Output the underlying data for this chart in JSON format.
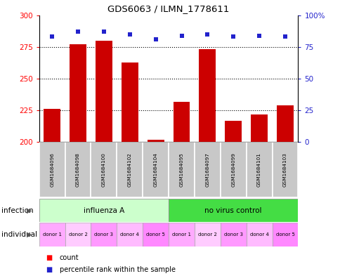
{
  "title": "GDS6063 / ILMN_1778611",
  "samples": [
    "GSM1684096",
    "GSM1684098",
    "GSM1684100",
    "GSM1684102",
    "GSM1684104",
    "GSM1684095",
    "GSM1684097",
    "GSM1684099",
    "GSM1684101",
    "GSM1684103"
  ],
  "counts": [
    226,
    277,
    280,
    263,
    202,
    232,
    273,
    217,
    222,
    229
  ],
  "percentile_ranks": [
    83,
    87,
    87,
    85,
    81,
    84,
    85,
    83,
    84,
    83
  ],
  "ylim_left": [
    200,
    300
  ],
  "ylim_right": [
    0,
    100
  ],
  "yticks_left": [
    200,
    225,
    250,
    275,
    300
  ],
  "yticks_right": [
    0,
    25,
    50,
    75,
    100
  ],
  "bar_color": "#cc0000",
  "dot_color": "#2222cc",
  "infection_groups": [
    {
      "label": "influenza A",
      "start": 0,
      "end": 5,
      "color": "#ccffcc"
    },
    {
      "label": "no virus control",
      "start": 5,
      "end": 10,
      "color": "#44dd44"
    }
  ],
  "individual_labels": [
    "donor 1",
    "donor 2",
    "donor 3",
    "donor 4",
    "donor 5",
    "donor 1",
    "donor 2",
    "donor 3",
    "donor 4",
    "donor 5"
  ],
  "individual_colors": [
    "#ffaaff",
    "#ffccff",
    "#ff99ff",
    "#ffbbff",
    "#ff88ff",
    "#ffaaff",
    "#ffccff",
    "#ff99ff",
    "#ffbbff",
    "#ff88ff"
  ],
  "sample_bg_color": "#c8c8c8",
  "infection_label": "infection",
  "individual_label": "individual",
  "legend_count_label": "count",
  "legend_percentile_label": "percentile rank within the sample",
  "grid_yticks": [
    225,
    250,
    275
  ]
}
